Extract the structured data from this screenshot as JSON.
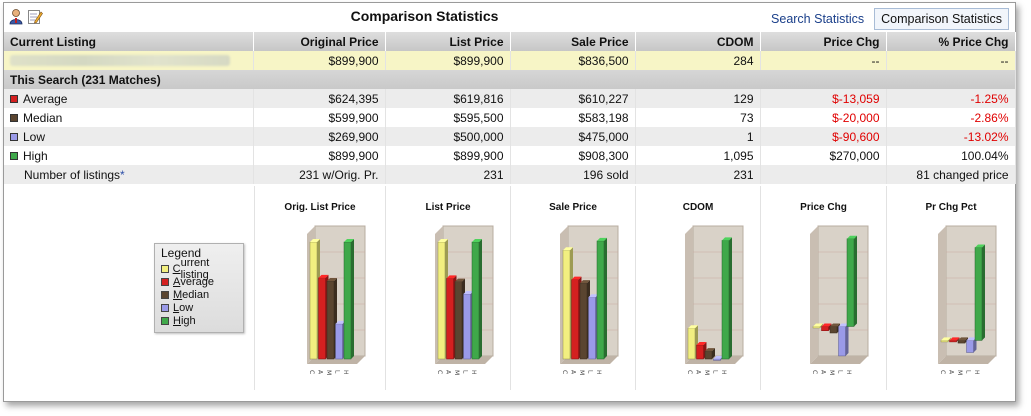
{
  "window": {
    "title": "Comparison Statistics",
    "tabs": [
      {
        "label": "Search Statistics",
        "active": false
      },
      {
        "label": "Comparison Statistics",
        "active": true
      }
    ],
    "icons": [
      "agent-icon",
      "edit-notes-icon"
    ]
  },
  "table": {
    "headers": [
      "Current Listing",
      "Original Price",
      "List Price",
      "Sale Price",
      "CDOM",
      "Price Chg",
      "% Price Chg"
    ],
    "current": [
      "",
      "$899,900",
      "$899,900",
      "$836,500",
      "284",
      "--",
      "--"
    ],
    "section_label": "This Search (231 Matches)",
    "rows": [
      {
        "label": "Average",
        "color": "#d42020",
        "values": [
          "$624,395",
          "$619,816",
          "$610,227",
          "129",
          "$-13,059",
          "-1.25%"
        ],
        "neg": [
          false,
          false,
          false,
          false,
          true,
          true
        ]
      },
      {
        "label": "Median",
        "color": "#5a4530",
        "values": [
          "$599,900",
          "$595,500",
          "$583,198",
          "73",
          "$-20,000",
          "-2.86%"
        ],
        "neg": [
          false,
          false,
          false,
          false,
          true,
          true
        ]
      },
      {
        "label": "Low",
        "color": "#9a9ae8",
        "values": [
          "$269,900",
          "$500,000",
          "$475,000",
          "1",
          "$-90,600",
          "-13.02%"
        ],
        "neg": [
          false,
          false,
          false,
          false,
          true,
          true
        ]
      },
      {
        "label": "High",
        "color": "#3fa84a",
        "values": [
          "$899,900",
          "$899,900",
          "$908,300",
          "1,095",
          "$270,000",
          "100.04%"
        ],
        "neg": [
          false,
          false,
          false,
          false,
          false,
          false
        ]
      }
    ],
    "count_row": {
      "label": "Number of listings",
      "asterisk": "*",
      "values": [
        "231 w/Orig. Pr.",
        "231",
        "196 sold",
        "231",
        "",
        "81 changed price"
      ]
    }
  },
  "legend": {
    "title": "Legend",
    "items": [
      {
        "label": "Current listing",
        "key": "C",
        "rest": "urrent listing",
        "color": "#f2ef80"
      },
      {
        "label": "Average",
        "key": "A",
        "rest": "verage",
        "color": "#d42020"
      },
      {
        "label": "Median",
        "key": "M",
        "rest": "edian",
        "color": "#5a4530"
      },
      {
        "label": "Low",
        "key": "L",
        "rest": "ow",
        "color": "#9a9ae8"
      },
      {
        "label": "High",
        "key": "H",
        "rest": "igh",
        "color": "#3fa84a"
      }
    ]
  },
  "chart_data": [
    {
      "type": "bar",
      "title": "Orig. List Price",
      "categories": [
        "C",
        "A",
        "M",
        "L",
        "H"
      ],
      "values": [
        899900,
        624395,
        599900,
        269900,
        899900
      ],
      "ylim": [
        0,
        1000000
      ]
    },
    {
      "type": "bar",
      "title": "List Price",
      "categories": [
        "C",
        "A",
        "M",
        "L",
        "H"
      ],
      "values": [
        899900,
        619816,
        595500,
        500000,
        899900
      ],
      "ylim": [
        0,
        1000000
      ]
    },
    {
      "type": "bar",
      "title": "Sale Price",
      "categories": [
        "C",
        "A",
        "M",
        "L",
        "H"
      ],
      "values": [
        836500,
        610227,
        583198,
        475000,
        908300
      ],
      "ylim": [
        0,
        1000000
      ]
    },
    {
      "type": "bar",
      "title": "CDOM",
      "categories": [
        "C",
        "A",
        "M",
        "L",
        "H"
      ],
      "values": [
        284,
        129,
        73,
        1,
        1095
      ],
      "ylim": [
        0,
        1200
      ]
    },
    {
      "type": "bar",
      "title": "Price Chg",
      "categories": [
        "C",
        "A",
        "M",
        "L",
        "H"
      ],
      "values": [
        0,
        -13059,
        -20000,
        -90600,
        270000
      ],
      "ylim": [
        -100000,
        300000
      ]
    },
    {
      "type": "bar",
      "title": "Pr Chg Pct",
      "categories": [
        "C",
        "A",
        "M",
        "L",
        "H"
      ],
      "values": [
        0,
        -1.25,
        -2.86,
        -13.02,
        100.04
      ],
      "ylim": [
        -20,
        120
      ]
    }
  ],
  "colors": {
    "current": "#f2ef80",
    "average": "#d42020",
    "median": "#5a4530",
    "low": "#9a9ae8",
    "high": "#3fa84a",
    "negative": "#e00000",
    "link": "#1a3f8a"
  }
}
